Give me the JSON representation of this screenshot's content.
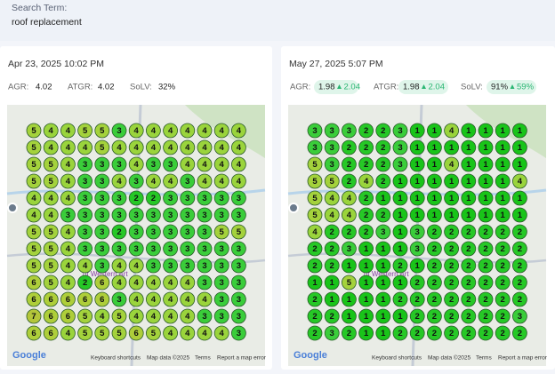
{
  "header": {
    "label": "Search Term:",
    "term": "roof replacement"
  },
  "rank_colors": [
    "#19c419",
    "#26c826",
    "#3acd3a",
    "#9ad43c",
    "#a4d23c",
    "#aece3a",
    "#b4c63a"
  ],
  "panels": [
    {
      "date": "Apr 23, 2025 10:02 PM",
      "metrics": [
        {
          "label": "AGR:",
          "value": "4.02"
        },
        {
          "label": "ATGR:",
          "value": "4.02"
        },
        {
          "label": "SoLV:",
          "value": "32%"
        }
      ],
      "ranks": [
        [
          5,
          4,
          4,
          5,
          5,
          3,
          4,
          4,
          4,
          4,
          4,
          4,
          4
        ],
        [
          5,
          4,
          4,
          4,
          5,
          4,
          4,
          4,
          4,
          4,
          4,
          4,
          4
        ],
        [
          5,
          5,
          4,
          3,
          3,
          3,
          4,
          3,
          3,
          4,
          4,
          4,
          4
        ],
        [
          5,
          5,
          4,
          3,
          3,
          4,
          3,
          4,
          4,
          3,
          4,
          4,
          4
        ],
        [
          4,
          4,
          4,
          3,
          3,
          3,
          2,
          2,
          3,
          3,
          3,
          3,
          3
        ],
        [
          4,
          4,
          3,
          3,
          3,
          3,
          3,
          3,
          3,
          3,
          3,
          3,
          3
        ],
        [
          5,
          5,
          4,
          3,
          3,
          2,
          3,
          3,
          3,
          3,
          3,
          5,
          5
        ],
        [
          5,
          5,
          4,
          3,
          3,
          3,
          3,
          3,
          3,
          3,
          3,
          3,
          3
        ],
        [
          5,
          5,
          4,
          4,
          3,
          4,
          4,
          3,
          3,
          3,
          3,
          3,
          3
        ],
        [
          6,
          5,
          4,
          2,
          6,
          4,
          4,
          4,
          4,
          4,
          3,
          3,
          3
        ],
        [
          6,
          6,
          6,
          6,
          6,
          3,
          4,
          4,
          4,
          4,
          4,
          3,
          3
        ],
        [
          7,
          6,
          6,
          5,
          4,
          5,
          4,
          4,
          4,
          4,
          3,
          3,
          3
        ],
        [
          6,
          6,
          4,
          5,
          5,
          5,
          6,
          5,
          4,
          4,
          4,
          4,
          3
        ]
      ]
    },
    {
      "date": "May 27, 2025 5:07 PM",
      "metrics": [
        {
          "label": "AGR:",
          "value": "1.98",
          "change": "2.04"
        },
        {
          "label": "ATGR:",
          "value": "1.98",
          "change": "2.04"
        },
        {
          "label": "SoLV:",
          "value": "91%",
          "change": "59%"
        }
      ],
      "ranks": [
        [
          3,
          3,
          3,
          2,
          2,
          3,
          1,
          1,
          4,
          1,
          1,
          1,
          1
        ],
        [
          3,
          3,
          2,
          2,
          2,
          3,
          1,
          1,
          1,
          1,
          1,
          1,
          1
        ],
        [
          5,
          3,
          2,
          2,
          2,
          3,
          1,
          1,
          4,
          1,
          1,
          1,
          1
        ],
        [
          5,
          5,
          2,
          4,
          2,
          1,
          1,
          1,
          1,
          1,
          1,
          1,
          4
        ],
        [
          5,
          4,
          4,
          2,
          1,
          1,
          1,
          1,
          1,
          1,
          1,
          1,
          1
        ],
        [
          5,
          4,
          4,
          2,
          2,
          1,
          1,
          1,
          1,
          1,
          1,
          1,
          1
        ],
        [
          4,
          2,
          2,
          2,
          3,
          1,
          3,
          2,
          2,
          2,
          2,
          2,
          2
        ],
        [
          2,
          2,
          3,
          1,
          1,
          1,
          3,
          2,
          2,
          2,
          2,
          2,
          2
        ],
        [
          2,
          2,
          1,
          1,
          1,
          2,
          1,
          2,
          2,
          2,
          2,
          2,
          2
        ],
        [
          1,
          1,
          5,
          1,
          1,
          1,
          2,
          2,
          2,
          2,
          2,
          2,
          2
        ],
        [
          2,
          1,
          1,
          1,
          1,
          2,
          2,
          2,
          2,
          2,
          2,
          2,
          2
        ],
        [
          2,
          2,
          1,
          1,
          1,
          1,
          2,
          2,
          2,
          2,
          2,
          2,
          3
        ],
        [
          2,
          3,
          2,
          1,
          1,
          2,
          2,
          2,
          2,
          2,
          2,
          2,
          2
        ]
      ]
    }
  ],
  "map": {
    "place": "of Western Art",
    "logo": "Google",
    "shortcuts": "Keyboard shortcuts",
    "mapdata": "Map data ©2025",
    "terms": "Terms",
    "report": "Report a map error"
  }
}
